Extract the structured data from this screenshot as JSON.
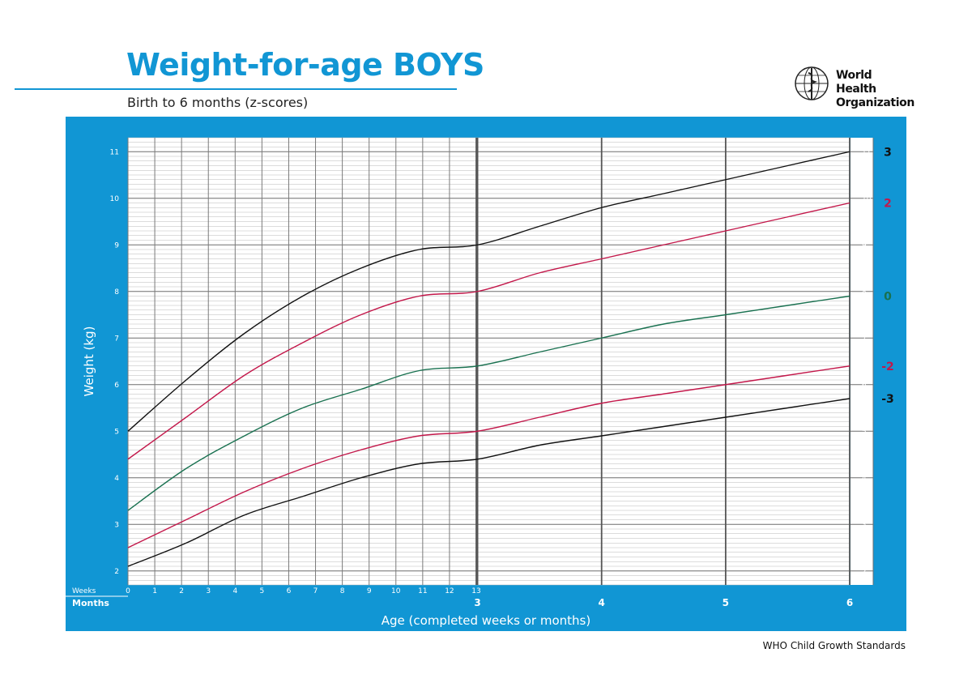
{
  "page": {
    "title": "Weight-for-age BOYS",
    "subtitle": "Birth to 6 months (z-scores)",
    "organization": "World Health\nOrganization",
    "footer": "WHO Child Growth Standards"
  },
  "colors": {
    "brand_blue": "#1196d4",
    "z_outer": "#111111",
    "z_two": "#c3174a",
    "z_median": "#197150"
  },
  "chart_data": {
    "type": "line",
    "title": "Weight-for-age BOYS",
    "subtitle": "Birth to 6 months (z-scores)",
    "xlabel": "Age (completed weeks or months)",
    "ylabel": "Weight (kg)",
    "ylim": [
      1.7,
      11.3
    ],
    "y_ticks": [
      2,
      3,
      4,
      5,
      6,
      7,
      8,
      9,
      10,
      11
    ],
    "weeks_label": "Weeks",
    "months_label": "Months",
    "week_ticks": [
      "0",
      "1",
      "2",
      "3",
      "4",
      "5",
      "6",
      "7",
      "8",
      "9",
      "10",
      "11",
      "12",
      "13"
    ],
    "month_ticks": [
      "3",
      "4",
      "5",
      "6"
    ],
    "x_unit": "months",
    "x": [
      0,
      0.5,
      1,
      1.5,
      2,
      2.5,
      3,
      3.5,
      4,
      4.5,
      5,
      5.5,
      6
    ],
    "grid": true,
    "series": [
      {
        "name": "3",
        "color": "#111111",
        "values": [
          5.0,
          6.1,
          7.1,
          7.9,
          8.5,
          8.9,
          9.0,
          9.4,
          9.8,
          10.1,
          10.4,
          10.7,
          11.0
        ]
      },
      {
        "name": "2",
        "color": "#c3174a",
        "values": [
          4.4,
          5.3,
          6.2,
          6.9,
          7.5,
          7.9,
          8.0,
          8.4,
          8.7,
          9.0,
          9.3,
          9.6,
          9.9
        ]
      },
      {
        "name": "0",
        "color": "#197150",
        "values": [
          3.3,
          4.2,
          4.9,
          5.5,
          5.9,
          6.3,
          6.4,
          6.7,
          7.0,
          7.3,
          7.5,
          7.7,
          7.9
        ]
      },
      {
        "name": "-2",
        "color": "#c3174a",
        "values": [
          2.5,
          3.1,
          3.7,
          4.2,
          4.6,
          4.9,
          5.0,
          5.3,
          5.6,
          5.8,
          6.0,
          6.2,
          6.4
        ]
      },
      {
        "name": "-3",
        "color": "#111111",
        "values": [
          2.1,
          2.6,
          3.2,
          3.6,
          4.0,
          4.3,
          4.4,
          4.7,
          4.9,
          5.1,
          5.3,
          5.5,
          5.7
        ]
      }
    ]
  }
}
